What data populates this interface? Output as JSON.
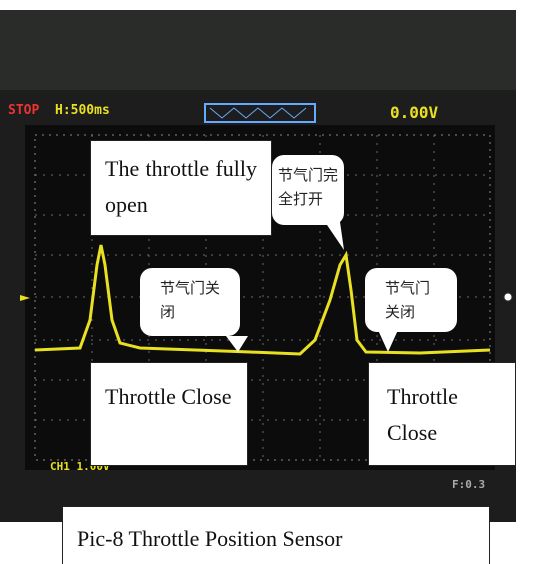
{
  "oscilloscope": {
    "status": "STOP",
    "timebase": "H:500ms",
    "trigger_level": "0.00V",
    "channel": "CH1 1.00V",
    "frequency": "F:0.3"
  },
  "annotations": {
    "fully_open_en": "The throttle fully open",
    "fully_open_cn": "节气门完全打开",
    "close_cn_left": "节气门关闭",
    "close_cn_right": "节气门关闭",
    "close_en_left": "Throttle Close",
    "close_en_right": "Throttle Close"
  },
  "caption": "Pic-8 Throttle Position Sensor"
}
